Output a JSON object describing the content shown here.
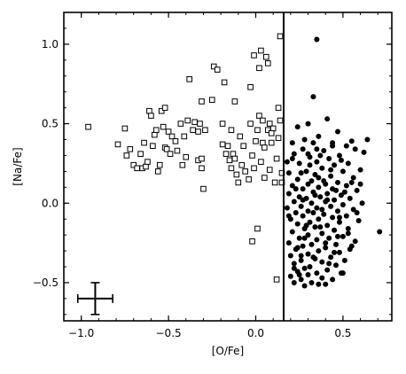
{
  "chart_data": {
    "type": "scatter",
    "xlabel": "[O/Fe]",
    "ylabel": "[Na/Fe]",
    "xlim": [
      -1.1,
      0.78
    ],
    "ylim": [
      -0.74,
      1.2
    ],
    "xticks": [
      -1.0,
      -0.5,
      0.0,
      0.5
    ],
    "xtick_labels": [
      "−1.0",
      "−0.5",
      "0.0",
      "0.5"
    ],
    "yticks": [
      -0.5,
      0.0,
      0.5,
      1.0
    ],
    "ytick_labels": [
      "−0.5",
      "0.0",
      "0.5",
      "1.0"
    ],
    "vertical_line_x": 0.16,
    "error_bar": {
      "x": -0.92,
      "y": -0.6,
      "x_err": 0.1,
      "y_err": 0.1
    },
    "grid": false,
    "series": [
      {
        "marker": "open-square",
        "points": [
          [
            -0.96,
            0.48
          ],
          [
            -0.79,
            0.37
          ],
          [
            -0.75,
            0.47
          ],
          [
            -0.74,
            0.3
          ],
          [
            -0.72,
            0.34
          ],
          [
            -0.7,
            0.24
          ],
          [
            -0.68,
            0.22
          ],
          [
            -0.66,
            0.31
          ],
          [
            -0.65,
            0.22
          ],
          [
            -0.64,
            0.38
          ],
          [
            -0.63,
            0.23
          ],
          [
            -0.62,
            0.26
          ],
          [
            -0.61,
            0.58
          ],
          [
            -0.6,
            0.55
          ],
          [
            -0.59,
            0.36
          ],
          [
            -0.58,
            0.43
          ],
          [
            -0.57,
            0.46
          ],
          [
            -0.56,
            0.2
          ],
          [
            -0.55,
            0.24
          ],
          [
            -0.54,
            0.58
          ],
          [
            -0.53,
            0.48
          ],
          [
            -0.52,
            0.6
          ],
          [
            -0.52,
            0.35
          ],
          [
            -0.51,
            0.34
          ],
          [
            -0.5,
            0.45
          ],
          [
            -0.49,
            0.31
          ],
          [
            -0.48,
            0.42
          ],
          [
            -0.46,
            0.39
          ],
          [
            -0.45,
            0.33
          ],
          [
            -0.43,
            0.5
          ],
          [
            -0.42,
            0.24
          ],
          [
            -0.41,
            0.42
          ],
          [
            -0.4,
            0.29
          ],
          [
            -0.39,
            0.52
          ],
          [
            -0.38,
            0.78
          ],
          [
            -0.36,
            0.46
          ],
          [
            -0.35,
            0.51
          ],
          [
            -0.33,
            0.45
          ],
          [
            -0.32,
            0.5
          ],
          [
            -0.33,
            0.27
          ],
          [
            -0.31,
            0.28
          ],
          [
            -0.31,
            0.22
          ],
          [
            -0.31,
            0.64
          ],
          [
            -0.3,
            0.09
          ],
          [
            -0.29,
            0.46
          ],
          [
            -0.25,
            0.65
          ],
          [
            -0.24,
            0.86
          ],
          [
            -0.22,
            0.84
          ],
          [
            -0.19,
            0.5
          ],
          [
            -0.19,
            0.37
          ],
          [
            -0.18,
            0.76
          ],
          [
            -0.17,
            0.31
          ],
          [
            -0.16,
            0.36
          ],
          [
            -0.15,
            0.27
          ],
          [
            -0.14,
            0.46
          ],
          [
            -0.13,
            0.31
          ],
          [
            -0.12,
            0.64
          ],
          [
            -0.12,
            0.28
          ],
          [
            -0.11,
            0.18
          ],
          [
            -0.1,
            0.13
          ],
          [
            -0.09,
            0.42
          ],
          [
            -0.08,
            0.24
          ],
          [
            -0.07,
            0.36
          ],
          [
            -0.06,
            0.2
          ],
          [
            -0.04,
            0.15
          ],
          [
            -0.03,
            0.73
          ],
          [
            -0.03,
            0.5
          ],
          [
            -0.02,
            0.3
          ],
          [
            -0.01,
            0.93
          ],
          [
            -0.02,
            -0.24
          ],
          [
            -0.01,
            0.22
          ],
          [
            0.0,
            0.39
          ],
          [
            0.01,
            0.46
          ],
          [
            0.01,
            -0.16
          ],
          [
            0.02,
            0.85
          ],
          [
            0.02,
            0.55
          ],
          [
            0.03,
            0.96
          ],
          [
            0.04,
            0.38
          ],
          [
            0.05,
            0.16
          ],
          [
            0.05,
            0.35
          ],
          [
            0.06,
            0.92
          ],
          [
            0.07,
            0.88
          ],
          [
            0.07,
            0.46
          ],
          [
            0.08,
            0.5
          ],
          [
            0.08,
            0.21
          ],
          [
            0.09,
            0.38
          ],
          [
            0.1,
            0.47
          ],
          [
            0.11,
            0.13
          ],
          [
            0.12,
            0.28
          ],
          [
            0.12,
            -0.48
          ],
          [
            0.13,
            0.6
          ],
          [
            0.13,
            0.41
          ],
          [
            0.14,
            1.05
          ],
          [
            0.14,
            0.52
          ],
          [
            0.15,
            0.19
          ],
          [
            0.15,
            0.13
          ],
          [
            0.04,
            0.52
          ],
          [
            0.09,
            0.44
          ],
          [
            -0.14,
            0.22
          ],
          [
            0.03,
            0.26
          ]
        ]
      },
      {
        "marker": "filled-circle",
        "points": [
          [
            0.35,
            1.03
          ],
          [
            0.33,
            0.67
          ],
          [
            0.41,
            0.53
          ],
          [
            0.3,
            0.5
          ],
          [
            0.24,
            0.48
          ],
          [
            0.47,
            0.45
          ],
          [
            0.36,
            0.42
          ],
          [
            0.28,
            0.4
          ],
          [
            0.55,
            0.39
          ],
          [
            0.64,
            0.4
          ],
          [
            0.21,
            0.38
          ],
          [
            0.44,
            0.38
          ],
          [
            0.33,
            0.38
          ],
          [
            0.52,
            0.36
          ],
          [
            0.27,
            0.34
          ],
          [
            0.57,
            0.34
          ],
          [
            0.39,
            0.33
          ],
          [
            0.62,
            0.32
          ],
          [
            0.22,
            0.31
          ],
          [
            0.48,
            0.3
          ],
          [
            0.31,
            0.29
          ],
          [
            0.42,
            0.28
          ],
          [
            0.35,
            0.26
          ],
          [
            0.53,
            0.25
          ],
          [
            0.25,
            0.25
          ],
          [
            0.45,
            0.24
          ],
          [
            0.38,
            0.22
          ],
          [
            0.6,
            0.21
          ],
          [
            0.29,
            0.2
          ],
          [
            0.5,
            0.2
          ],
          [
            0.19,
            0.19
          ],
          [
            0.34,
            0.18
          ],
          [
            0.43,
            0.17
          ],
          [
            0.56,
            0.16
          ],
          [
            0.24,
            0.15
          ],
          [
            0.39,
            0.14
          ],
          [
            0.47,
            0.13
          ],
          [
            0.3,
            0.12
          ],
          [
            0.21,
            0.11
          ],
          [
            0.52,
            0.11
          ],
          [
            0.36,
            0.1
          ],
          [
            0.44,
            0.09
          ],
          [
            0.27,
            0.09
          ],
          [
            0.58,
            0.08
          ],
          [
            0.33,
            0.07
          ],
          [
            0.41,
            0.06
          ],
          [
            0.19,
            0.06
          ],
          [
            0.49,
            0.05
          ],
          [
            0.25,
            0.04
          ],
          [
            0.37,
            0.04
          ],
          [
            0.54,
            0.03
          ],
          [
            0.29,
            0.03
          ],
          [
            0.45,
            0.02
          ],
          [
            0.22,
            0.01
          ],
          [
            0.4,
            0.01
          ],
          [
            0.61,
            0.0
          ],
          [
            0.32,
            0.0
          ],
          [
            0.5,
            -0.01
          ],
          [
            0.26,
            -0.02
          ],
          [
            0.43,
            -0.02
          ],
          [
            0.18,
            -0.03
          ],
          [
            0.35,
            -0.03
          ],
          [
            0.56,
            -0.04
          ],
          [
            0.3,
            -0.05
          ],
          [
            0.47,
            -0.05
          ],
          [
            0.23,
            -0.06
          ],
          [
            0.39,
            -0.07
          ],
          [
            0.52,
            -0.08
          ],
          [
            0.27,
            -0.08
          ],
          [
            0.44,
            -0.09
          ],
          [
            0.2,
            -0.1
          ],
          [
            0.36,
            -0.1
          ],
          [
            0.59,
            -0.11
          ],
          [
            0.31,
            -0.12
          ],
          [
            0.48,
            -0.12
          ],
          [
            0.24,
            -0.13
          ],
          [
            0.41,
            -0.14
          ],
          [
            0.34,
            -0.15
          ],
          [
            0.53,
            -0.16
          ],
          [
            0.28,
            -0.16
          ],
          [
            0.45,
            -0.17
          ],
          [
            0.71,
            -0.18
          ],
          [
            0.21,
            -0.18
          ],
          [
            0.38,
            -0.19
          ],
          [
            0.3,
            -0.2
          ],
          [
            0.5,
            -0.21
          ],
          [
            0.25,
            -0.22
          ],
          [
            0.42,
            -0.22
          ],
          [
            0.35,
            -0.23
          ],
          [
            0.57,
            -0.24
          ],
          [
            0.19,
            -0.25
          ],
          [
            0.32,
            -0.26
          ],
          [
            0.46,
            -0.26
          ],
          [
            0.27,
            -0.27
          ],
          [
            0.4,
            -0.28
          ],
          [
            0.23,
            -0.29
          ],
          [
            0.54,
            -0.29
          ],
          [
            0.36,
            -0.3
          ],
          [
            0.48,
            -0.31
          ],
          [
            0.3,
            -0.32
          ],
          [
            0.2,
            -0.33
          ],
          [
            0.43,
            -0.34
          ],
          [
            0.34,
            -0.35
          ],
          [
            0.26,
            -0.36
          ],
          [
            0.51,
            -0.36
          ],
          [
            0.38,
            -0.37
          ],
          [
            0.22,
            -0.38
          ],
          [
            0.46,
            -0.39
          ],
          [
            0.31,
            -0.4
          ],
          [
            0.28,
            -0.41
          ],
          [
            0.41,
            -0.42
          ],
          [
            0.24,
            -0.43
          ],
          [
            0.35,
            -0.44
          ],
          [
            0.49,
            -0.44
          ],
          [
            0.3,
            -0.45
          ],
          [
            0.2,
            -0.46
          ],
          [
            0.38,
            -0.47
          ],
          [
            0.26,
            -0.48
          ],
          [
            0.44,
            -0.48
          ],
          [
            0.32,
            -0.5
          ],
          [
            0.22,
            -0.5
          ],
          [
            0.4,
            -0.51
          ],
          [
            0.28,
            -0.52
          ],
          [
            0.36,
            -0.51
          ],
          [
            0.18,
            0.26
          ],
          [
            0.37,
            0.3
          ],
          [
            0.46,
            0.08
          ],
          [
            0.26,
            0.19
          ],
          [
            0.55,
            0.13
          ],
          [
            0.33,
            -0.06
          ],
          [
            0.43,
            0.21
          ],
          [
            0.29,
            -0.14
          ],
          [
            0.51,
            0.07
          ],
          [
            0.4,
            -0.25
          ],
          [
            0.22,
            -0.41
          ],
          [
            0.47,
            -0.21
          ],
          [
            0.34,
            0.05
          ],
          [
            0.24,
            -0.28
          ],
          [
            0.58,
            -0.06
          ],
          [
            0.36,
            0.16
          ],
          [
            0.42,
            -0.38
          ],
          [
            0.27,
            0.02
          ],
          [
            0.49,
            0.27
          ],
          [
            0.31,
            0.24
          ],
          [
            0.19,
            -0.08
          ],
          [
            0.53,
            -0.19
          ],
          [
            0.38,
            -0.04
          ],
          [
            0.45,
            -0.31
          ],
          [
            0.23,
            0.09
          ],
          [
            0.6,
            0.12
          ],
          [
            0.33,
            -0.34
          ],
          [
            0.4,
            0.12
          ],
          [
            0.28,
            -0.22
          ],
          [
            0.5,
            -0.44
          ],
          [
            0.35,
            0.34
          ],
          [
            0.25,
            -0.45
          ],
          [
            0.44,
            0.36
          ],
          [
            0.37,
            -0.15
          ],
          [
            0.21,
            0.28
          ],
          [
            0.48,
            -0.09
          ],
          [
            0.32,
            0.14
          ],
          [
            0.55,
            -0.27
          ],
          [
            0.41,
            0.02
          ],
          [
            0.26,
            -0.33
          ],
          [
            0.3,
            0.31
          ]
        ]
      }
    ]
  }
}
